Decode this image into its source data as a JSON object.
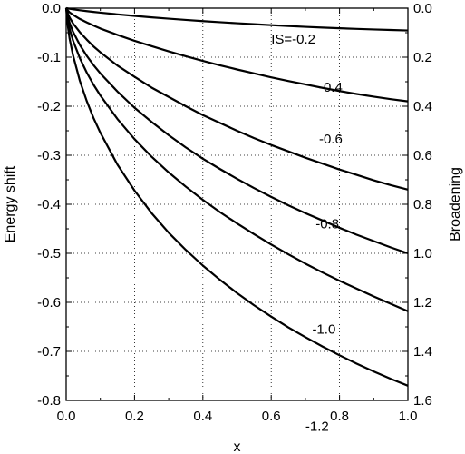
{
  "chart_data": {
    "type": "line",
    "title": "",
    "xlabel": "x",
    "ylabel": "Energy shift",
    "y2label": "Broadening",
    "xlim": [
      0.0,
      1.0
    ],
    "ylim": [
      -0.8,
      0.0
    ],
    "y2lim": [
      1.6,
      0.0
    ],
    "grid": true,
    "grid_style": "dotted",
    "legend": "none",
    "x_ticks": [
      "0.0",
      "0.2",
      "0.4",
      "0.6",
      "0.8",
      "1.0"
    ],
    "y_ticks": [
      "0.0",
      "-0.1",
      "-0.2",
      "-0.3",
      "-0.4",
      "-0.5",
      "-0.6",
      "-0.7",
      "-0.8"
    ],
    "y2_ticks": [
      "0.0",
      "0.2",
      "0.4",
      "0.6",
      "0.8",
      "1.0",
      "1.2",
      "1.4",
      "1.6"
    ],
    "x": [
      0.0,
      0.005,
      0.01,
      0.02,
      0.04,
      0.06,
      0.08,
      0.1,
      0.15,
      0.2,
      0.25,
      0.3,
      0.35,
      0.4,
      0.45,
      0.5,
      0.55,
      0.6,
      0.65,
      0.7,
      0.75,
      0.8,
      0.85,
      0.9,
      0.95,
      1.0
    ],
    "series": [
      {
        "label": "IS=-0.2",
        "values": [
          0.0,
          -0.0007,
          -0.0013,
          -0.0024,
          -0.0043,
          -0.006,
          -0.0076,
          -0.0091,
          -0.0126,
          -0.0158,
          -0.0187,
          -0.0214,
          -0.024,
          -0.0264,
          -0.0286,
          -0.0307,
          -0.0327,
          -0.0346,
          -0.0364,
          -0.0381,
          -0.0396,
          -0.041,
          -0.0422,
          -0.0434,
          -0.0445,
          -0.0455
        ]
      },
      {
        "label": "-0.4",
        "values": [
          0.0,
          -0.005,
          -0.0085,
          -0.0135,
          -0.022,
          -0.029,
          -0.0355,
          -0.0415,
          -0.0545,
          -0.0665,
          -0.0775,
          -0.088,
          -0.098,
          -0.1075,
          -0.1165,
          -0.125,
          -0.133,
          -0.141,
          -0.1485,
          -0.1555,
          -0.1625,
          -0.169,
          -0.175,
          -0.1805,
          -0.1855,
          -0.19
        ]
      },
      {
        "label": "-0.6",
        "values": [
          0.0,
          -0.011,
          -0.019,
          -0.031,
          -0.049,
          -0.064,
          -0.078,
          -0.09,
          -0.117,
          -0.14,
          -0.162,
          -0.181,
          -0.2,
          -0.218,
          -0.234,
          -0.25,
          -0.265,
          -0.279,
          -0.292,
          -0.305,
          -0.317,
          -0.329,
          -0.34,
          -0.351,
          -0.361,
          -0.37
        ]
      },
      {
        "label": "-0.8",
        "values": [
          0.0,
          -0.018,
          -0.03,
          -0.048,
          -0.075,
          -0.097,
          -0.116,
          -0.133,
          -0.17,
          -0.203,
          -0.232,
          -0.259,
          -0.284,
          -0.307,
          -0.328,
          -0.348,
          -0.367,
          -0.385,
          -0.402,
          -0.418,
          -0.433,
          -0.448,
          -0.462,
          -0.475,
          -0.488,
          -0.5
        ]
      },
      {
        "label": "-1.0",
        "values": [
          0.0,
          -0.025,
          -0.042,
          -0.066,
          -0.102,
          -0.131,
          -0.156,
          -0.178,
          -0.226,
          -0.267,
          -0.303,
          -0.335,
          -0.364,
          -0.391,
          -0.416,
          -0.439,
          -0.461,
          -0.482,
          -0.502,
          -0.521,
          -0.539,
          -0.556,
          -0.572,
          -0.588,
          -0.603,
          -0.618
        ]
      },
      {
        "label": "-1.2",
        "values": [
          0.0,
          -0.037,
          -0.062,
          -0.096,
          -0.148,
          -0.189,
          -0.224,
          -0.254,
          -0.319,
          -0.372,
          -0.418,
          -0.458,
          -0.493,
          -0.525,
          -0.554,
          -0.581,
          -0.606,
          -0.629,
          -0.651,
          -0.671,
          -0.69,
          -0.708,
          -0.725,
          -0.741,
          -0.756,
          -0.77
        ]
      }
    ]
  },
  "curve_label_positions": [
    {
      "x": 0.6,
      "y": -0.072
    },
    {
      "x": 0.74,
      "y": -0.17
    },
    {
      "x": 0.74,
      "y": -0.276
    },
    {
      "x": 0.73,
      "y": -0.449
    },
    {
      "x": 0.72,
      "y": -0.664
    },
    {
      "x": 0.7,
      "y": -0.862
    }
  ]
}
